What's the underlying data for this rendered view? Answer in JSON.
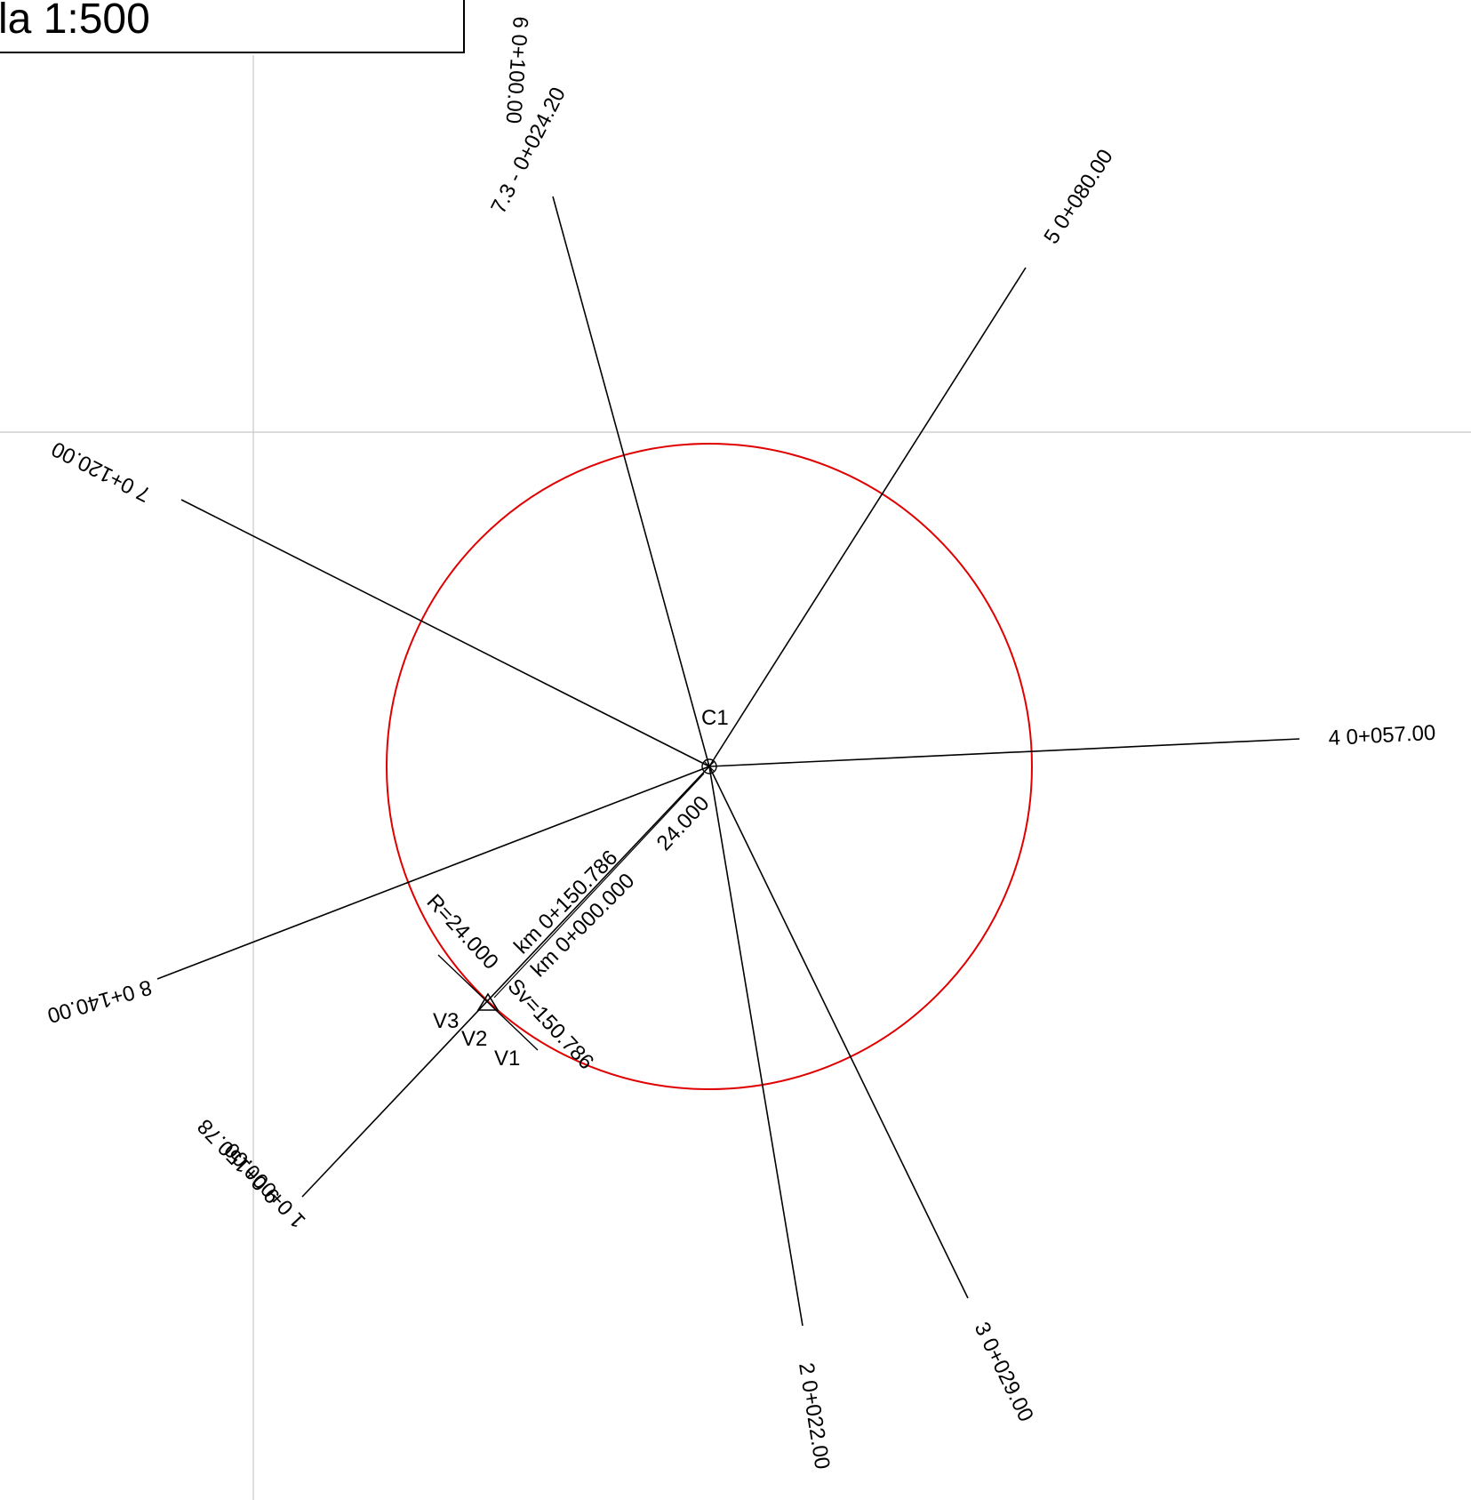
{
  "scale_label": "la 1:500",
  "colors": {
    "circle": "#e00000",
    "lines": "#000000",
    "grid": "#c8c8c8"
  },
  "center_label": "C1",
  "radials": [
    {
      "label": "1 0+000.00"
    },
    {
      "label": "2 0+022.00"
    },
    {
      "label": "3 0+029.00"
    },
    {
      "label": "4 0+057.00"
    },
    {
      "label": "5 0+080.00"
    },
    {
      "label": "6 0+100.00"
    },
    {
      "label": "7.3 - 0+024.20"
    },
    {
      "label": "7 0+120.00"
    },
    {
      "label": "8 0+140.00"
    },
    {
      "label": "9 0+150.78"
    }
  ],
  "annotations": {
    "radius": "R=24.000",
    "km_end": "km 0+150.786",
    "km_start": "km 0+000.000",
    "sv": "Sv=150.786",
    "dimension": "24.000"
  },
  "vertices": [
    "V1",
    "V2",
    "V3"
  ]
}
